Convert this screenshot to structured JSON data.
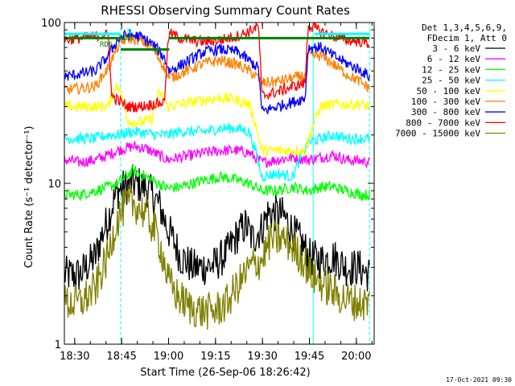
{
  "chart_data": {
    "type": "line",
    "title": "RHESSI Observing Summary Count Rates",
    "xlabel": "Start Time (26-Sep-06 18:26:42)",
    "ylabel": "Count Rate (s⁻¹ detector⁻¹)",
    "y_scale": "log",
    "ylim": [
      1,
      100
    ],
    "xlim": [
      0,
      99
    ],
    "x_unit": "minutes after 18:26:42",
    "x_ticks": [
      "18:30",
      "18:45",
      "19:00",
      "19:15",
      "19:30",
      "19:45",
      "20:00"
    ],
    "x_tick_values": [
      3.3,
      18.3,
      33.3,
      48.3,
      63.3,
      78.3,
      93.3
    ],
    "y_ticks": [
      "1",
      "10",
      "100"
    ],
    "y_tick_values": [
      1,
      10,
      100
    ],
    "legend_header": [
      "Det 1,3,4,5,6,9,",
      "FDecim 1, Att 0"
    ],
    "legend_position": "right",
    "flag_labels": [
      "RD6",
      "RD6",
      "N"
    ],
    "footer_date": "17-Oct-2021 09:30",
    "series": [
      {
        "name": "3 - 6 keV",
        "color": "#000000",
        "x": [
          0,
          5,
          10,
          14,
          17,
          22,
          26,
          30,
          33,
          37,
          41,
          44,
          48,
          52,
          56,
          58,
          60,
          63,
          65,
          68,
          70,
          73,
          77,
          78,
          82,
          86,
          90,
          94,
          97.5
        ],
        "y": [
          2.7,
          2.7,
          3.5,
          6,
          9,
          10,
          9.5,
          7.5,
          5.2,
          3.5,
          3,
          3,
          3.1,
          3.7,
          5,
          5.5,
          4.5,
          5.2,
          6.5,
          6.5,
          6.3,
          5,
          3.9,
          3.5,
          3.3,
          3.5,
          3,
          3,
          2.7
        ]
      },
      {
        "name": "6 - 12 keV",
        "color": "#ff00ff",
        "x": [
          0,
          5,
          10,
          14,
          17,
          22,
          26,
          30,
          33,
          37,
          41,
          45,
          50,
          55,
          59,
          63,
          68,
          73,
          78,
          82,
          86,
          90,
          95,
          97.5
        ],
        "y": [
          14,
          13.5,
          14,
          15,
          16,
          17,
          16.5,
          15,
          14,
          14.5,
          15,
          15.5,
          16,
          16,
          15.5,
          13.5,
          14,
          14.5,
          14,
          14.5,
          15,
          14,
          13.8,
          13.5
        ]
      },
      {
        "name": "12 - 25 keV",
        "color": "#00ff00",
        "x": [
          0,
          5,
          10,
          14,
          17,
          22,
          26,
          30,
          33,
          37,
          41,
          45,
          50,
          55,
          59,
          63,
          68,
          73,
          78,
          82,
          86,
          90,
          95,
          97.5
        ],
        "y": [
          8.5,
          8.5,
          9,
          9.5,
          10,
          12,
          11,
          10,
          9.3,
          9.5,
          10,
          10.5,
          11,
          10.5,
          10,
          9,
          9,
          9.5,
          9,
          9.5,
          9.5,
          9,
          8.5,
          8.5
        ]
      },
      {
        "name": "25 - 50 keV",
        "color": "#00ffff",
        "x": [
          0,
          5,
          10,
          14,
          17,
          22,
          26,
          30,
          33,
          37,
          41,
          45,
          50,
          55,
          59,
          63,
          68,
          73,
          78,
          82,
          86,
          90,
          95,
          97.5
        ],
        "y": [
          19,
          19,
          19,
          20,
          20,
          21,
          20.5,
          20,
          20,
          21,
          21,
          21,
          22,
          22,
          21,
          11,
          11.5,
          11,
          18,
          19,
          20,
          19,
          19,
          19
        ]
      },
      {
        "name": "50 - 100 keV",
        "color": "#ffff00",
        "x": [
          0,
          5,
          10,
          14,
          17,
          20,
          22,
          25,
          28,
          30,
          31.5,
          33,
          37,
          41,
          45,
          50,
          55,
          59,
          63,
          68,
          73,
          77,
          82,
          86,
          90,
          95,
          97.5
        ],
        "y": [
          30,
          30,
          30,
          30,
          42,
          25,
          24,
          24,
          25,
          36,
          35,
          30,
          31,
          32,
          33,
          34,
          33,
          31,
          16,
          16,
          16,
          16,
          30,
          31,
          31,
          31,
          30
        ]
      },
      {
        "name": "100 - 300 keV",
        "color": "#ff8000",
        "x": [
          0,
          5,
          10,
          14,
          17,
          20,
          24,
          28,
          32,
          33.5,
          37,
          41,
          45,
          50,
          55,
          59,
          62,
          63,
          68,
          73,
          77,
          78,
          82,
          86,
          90,
          95,
          97.5
        ],
        "y": [
          38,
          39,
          40,
          52,
          70,
          80,
          78,
          70,
          52,
          45,
          48,
          52,
          56,
          58,
          55,
          50,
          45,
          42,
          43,
          45,
          47,
          62,
          62,
          55,
          48,
          42,
          39
        ]
      },
      {
        "name": "300 - 800 keV",
        "color": "#0000ff",
        "x": [
          0,
          5,
          10,
          14,
          17,
          20,
          24,
          28,
          32,
          33.5,
          37,
          41,
          45,
          50,
          55,
          59,
          62,
          63,
          68,
          73,
          77,
          78,
          82,
          86,
          90,
          95,
          97.5
        ],
        "y": [
          46,
          48,
          50,
          62,
          78,
          84,
          82,
          74,
          60,
          50,
          54,
          60,
          66,
          68,
          66,
          58,
          52,
          28,
          30,
          32,
          34,
          70,
          70,
          62,
          56,
          50,
          46
        ]
      },
      {
        "name": "800 - 7000 keV",
        "color": "#ff0000",
        "x": [
          0,
          5,
          10,
          14,
          15,
          20,
          24,
          28,
          32,
          33.5,
          37,
          41,
          45,
          50,
          55,
          59,
          62,
          63,
          68,
          73,
          77,
          78,
          82,
          86,
          90,
          95,
          97.5
        ],
        "y": [
          78,
          80,
          82,
          84,
          35,
          30,
          30,
          31,
          32,
          86,
          80,
          77,
          76,
          78,
          82,
          88,
          95,
          35,
          37,
          40,
          42,
          96,
          88,
          82,
          78,
          76,
          74
        ]
      },
      {
        "name": "7000 - 15000 keV",
        "color": "#808000",
        "x": [
          0,
          5,
          10,
          14,
          17,
          20,
          22,
          26,
          30,
          33,
          36,
          40,
          44,
          48,
          52,
          56,
          60,
          63,
          66,
          70,
          73,
          77,
          78,
          82,
          86,
          90,
          94,
          97.5
        ],
        "y": [
          1.8,
          1.8,
          2.2,
          3.5,
          6,
          7.5,
          7.5,
          6.5,
          4.5,
          2.5,
          2,
          1.7,
          1.6,
          1.6,
          1.8,
          2.4,
          3.1,
          3.3,
          4.5,
          4.5,
          4,
          3.2,
          2.8,
          2.4,
          2.1,
          1.9,
          1.8,
          1.8
        ]
      }
    ],
    "flags": [
      {
        "color": "#00ffff",
        "x": [
          0,
          18
        ],
        "y": 85
      },
      {
        "color": "#00ffff",
        "x": [
          80,
          97.5
        ],
        "y": 85
      },
      {
        "color": "#008000",
        "x": [
          0,
          18
        ],
        "y": 80
      },
      {
        "color": "#008000",
        "x": [
          33.5,
          97.5
        ],
        "y": 80
      },
      {
        "color": "#008000",
        "x": [
          18,
          33.5
        ],
        "y": 68
      }
    ],
    "vlines": [
      {
        "color": "#00ffff",
        "x": 0,
        "style": "solid"
      },
      {
        "color": "#00ffff",
        "x": 18,
        "style": "dashed"
      },
      {
        "color": "#00ffff",
        "x": 79.5,
        "style": "solid"
      },
      {
        "color": "#00ffff",
        "x": 97.5,
        "style": "dashed"
      }
    ]
  }
}
